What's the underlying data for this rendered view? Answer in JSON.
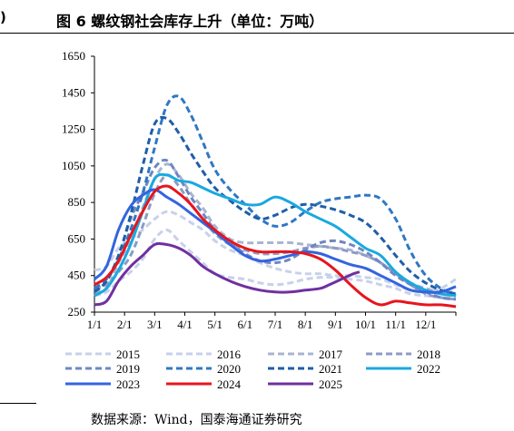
{
  "left_title": ")",
  "title": "图 6 螺纹钢社会库存上升（单位：万吨）",
  "source": "数据来源：Wind，国泰海通证券研究",
  "chart_data": {
    "type": "line",
    "title": "图 6 螺纹钢社会库存上升（单位：万吨）",
    "xlabel": "",
    "ylabel": "",
    "x_ticks": [
      "1/1",
      "2/1",
      "3/1",
      "4/1",
      "5/1",
      "6/1",
      "7/1",
      "8/1",
      "9/1",
      "10/1",
      "11/1",
      "12/1"
    ],
    "y_ticks": [
      250,
      450,
      650,
      850,
      1050,
      1250,
      1450,
      1650
    ],
    "ylim": [
      250,
      1650
    ],
    "xlim": [
      0,
      12
    ],
    "grid": false,
    "legend_position": "bottom",
    "series": [
      {
        "name": "2015",
        "color": "#c8d1ea",
        "style": "dash",
        "x": [
          0,
          0.4,
          0.8,
          1.2,
          1.6,
          2.0,
          2.4,
          2.8,
          3.2,
          3.6,
          4.0,
          4.5,
          5.0,
          5.5,
          6.0,
          6.5,
          7.0,
          7.5,
          8.0,
          8.5,
          9.0,
          9.5,
          10.0,
          10.5,
          11.0,
          11.5,
          12.0
        ],
        "y": [
          480,
          500,
          600,
          650,
          700,
          760,
          800,
          780,
          740,
          700,
          640,
          590,
          560,
          520,
          490,
          470,
          460,
          460,
          450,
          450,
          440,
          430,
          400,
          370,
          360,
          380,
          430
        ]
      },
      {
        "name": "2016",
        "color": "#c8d1ea",
        "style": "dash",
        "x": [
          0,
          0.4,
          0.8,
          1.2,
          1.6,
          2.0,
          2.4,
          2.8,
          3.2,
          3.6,
          4.0,
          4.5,
          5.0,
          5.5,
          6.0,
          6.5,
          7.0,
          7.5,
          8.0,
          8.5,
          9.0,
          9.5,
          10.0,
          10.5,
          11.0,
          11.5,
          12.0
        ],
        "y": [
          340,
          360,
          420,
          470,
          540,
          650,
          700,
          640,
          580,
          520,
          460,
          440,
          430,
          410,
          400,
          410,
          430,
          440,
          440,
          430,
          420,
          400,
          380,
          350,
          340,
          330,
          330
        ]
      },
      {
        "name": "2017",
        "color": "#aab4cf",
        "style": "dash",
        "x": [
          0,
          0.4,
          0.8,
          1.2,
          1.6,
          2.0,
          2.4,
          2.8,
          3.2,
          3.6,
          4.0,
          4.5,
          5.0,
          5.5,
          6.0,
          6.5,
          7.0,
          7.5,
          8.0,
          8.5,
          9.0,
          9.5,
          10.0,
          10.5,
          11.0,
          11.5,
          12.0
        ],
        "y": [
          360,
          380,
          520,
          650,
          820,
          980,
          1060,
          1000,
          900,
          820,
          720,
          650,
          630,
          630,
          630,
          630,
          620,
          610,
          600,
          590,
          560,
          520,
          460,
          410,
          380,
          360,
          360
        ]
      },
      {
        "name": "2018",
        "color": "#8e9bc4",
        "style": "dash",
        "x": [
          0,
          0.4,
          0.8,
          1.2,
          1.6,
          2.0,
          2.4,
          2.8,
          3.2,
          3.6,
          4.0,
          4.5,
          5.0,
          5.5,
          6.0,
          6.5,
          7.0,
          7.5,
          8.0,
          8.5,
          9.0,
          9.5,
          10.0,
          10.5,
          11.0,
          11.5,
          12.0
        ],
        "y": [
          380,
          400,
          470,
          560,
          720,
          900,
          1000,
          940,
          840,
          760,
          680,
          620,
          590,
          570,
          570,
          580,
          600,
          610,
          600,
          580,
          560,
          520,
          460,
          400,
          350,
          330,
          320
        ]
      },
      {
        "name": "2019",
        "color": "#6f86c3",
        "style": "dash",
        "x": [
          0,
          0.4,
          0.8,
          1.2,
          1.6,
          2.0,
          2.4,
          2.8,
          3.2,
          3.6,
          4.0,
          4.5,
          5.0,
          5.5,
          6.0,
          6.5,
          7.0,
          7.5,
          8.0,
          8.5,
          9.0,
          9.5,
          10.0,
          10.5,
          11.0,
          11.5,
          12.0
        ],
        "y": [
          360,
          420,
          560,
          760,
          900,
          1040,
          1080,
          990,
          880,
          790,
          700,
          630,
          570,
          530,
          520,
          540,
          590,
          630,
          640,
          620,
          580,
          520,
          450,
          400,
          360,
          330,
          320
        ]
      },
      {
        "name": "2020",
        "color": "#2f78c4",
        "style": "dash",
        "x": [
          0,
          0.4,
          0.8,
          1.2,
          1.6,
          2.0,
          2.4,
          2.8,
          3.2,
          3.6,
          4.0,
          4.5,
          5.0,
          5.5,
          6.0,
          6.5,
          7.0,
          7.5,
          8.0,
          8.5,
          9.0,
          9.5,
          10.0,
          10.5,
          11.0,
          11.5,
          12.0
        ],
        "y": [
          380,
          430,
          540,
          700,
          900,
          1150,
          1380,
          1430,
          1330,
          1180,
          1030,
          920,
          840,
          760,
          720,
          740,
          800,
          850,
          870,
          880,
          890,
          870,
          760,
          580,
          450,
          380,
          340
        ]
      },
      {
        "name": "2021",
        "color": "#1f5ea8",
        "style": "dash",
        "x": [
          0,
          0.4,
          0.8,
          1.2,
          1.6,
          2.0,
          2.4,
          2.8,
          3.2,
          3.6,
          4.0,
          4.5,
          5.0,
          5.5,
          6.0,
          6.5,
          7.0,
          7.5,
          8.0,
          8.5,
          9.0,
          9.5,
          10.0,
          10.5,
          11.0,
          11.5,
          12.0
        ],
        "y": [
          360,
          420,
          560,
          780,
          1050,
          1280,
          1310,
          1230,
          1120,
          1020,
          930,
          860,
          800,
          760,
          780,
          820,
          840,
          830,
          810,
          780,
          740,
          660,
          560,
          470,
          410,
          370,
          350
        ]
      },
      {
        "name": "2022",
        "color": "#19a9e0",
        "style": "solid",
        "x": [
          0,
          0.4,
          0.8,
          1.2,
          1.6,
          2.0,
          2.4,
          2.8,
          3.2,
          3.6,
          4.0,
          4.5,
          5.0,
          5.5,
          6.0,
          6.5,
          7.0,
          7.5,
          8.0,
          8.5,
          9.0,
          9.5,
          10.0,
          10.5,
          11.0,
          11.5,
          12.0
        ],
        "y": [
          340,
          380,
          480,
          620,
          800,
          980,
          1000,
          970,
          960,
          930,
          900,
          870,
          840,
          840,
          880,
          850,
          800,
          760,
          720,
          660,
          600,
          560,
          470,
          410,
          370,
          350,
          340
        ]
      },
      {
        "name": "2023",
        "color": "#3364e0",
        "style": "solid",
        "x": [
          0,
          0.4,
          0.8,
          1.2,
          1.6,
          2.0,
          2.4,
          2.8,
          3.2,
          3.6,
          4.0,
          4.5,
          5.0,
          5.5,
          6.0,
          6.5,
          7.0,
          7.5,
          8.0,
          8.5,
          9.0,
          9.5,
          10.0,
          10.5,
          11.0,
          11.5,
          12.0
        ],
        "y": [
          430,
          500,
          700,
          830,
          890,
          920,
          880,
          840,
          790,
          740,
          690,
          620,
          560,
          530,
          540,
          560,
          580,
          570,
          540,
          510,
          490,
          450,
          410,
          370,
          360,
          360,
          390
        ]
      },
      {
        "name": "2024",
        "color": "#e8141c",
        "style": "solid",
        "x": [
          0,
          0.4,
          0.8,
          1.2,
          1.6,
          2.0,
          2.4,
          2.8,
          3.2,
          3.6,
          4.0,
          4.5,
          5.0,
          5.5,
          6.0,
          6.5,
          7.0,
          7.5,
          8.0,
          8.5,
          9.0,
          9.5,
          10.0,
          10.5,
          11.0,
          11.5,
          12.0
        ],
        "y": [
          400,
          440,
          530,
          670,
          800,
          910,
          940,
          900,
          840,
          760,
          700,
          640,
          600,
          580,
          580,
          580,
          570,
          540,
          480,
          400,
          330,
          290,
          310,
          300,
          290,
          290,
          280
        ]
      },
      {
        "name": "2025",
        "color": "#7030a0",
        "style": "solid",
        "x": [
          0,
          0.4,
          0.8,
          1.2,
          1.6,
          2.0,
          2.4,
          2.8,
          3.2,
          3.6,
          4.0,
          4.5,
          5.0,
          5.5,
          6.0,
          6.5,
          7.0,
          7.5,
          7.8,
          8.2,
          8.6,
          8.8
        ],
        "y": [
          290,
          310,
          420,
          500,
          560,
          620,
          620,
          600,
          560,
          500,
          460,
          420,
          390,
          370,
          360,
          360,
          370,
          380,
          400,
          430,
          460,
          470
        ]
      }
    ]
  }
}
